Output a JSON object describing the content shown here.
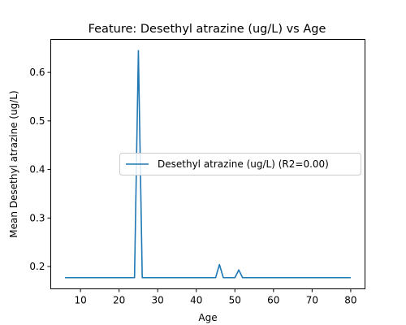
{
  "chart_data": {
    "type": "line",
    "title": "Feature: Desethyl atrazine (ug/L) vs Age",
    "xlabel": "Age",
    "ylabel": "Mean Desethyl atrazine (ug/L)",
    "xlim": [
      2.3,
      83.7
    ],
    "ylim": [
      0.154,
      0.668
    ],
    "xticks": [
      10,
      20,
      30,
      40,
      50,
      60,
      70,
      80
    ],
    "yticks": [
      0.2,
      0.3,
      0.4,
      0.5,
      0.6
    ],
    "ytick_labels": [
      "0.2",
      "0.3",
      "0.4",
      "0.5",
      "0.6"
    ],
    "grid": false,
    "legend_position": "center-right",
    "color": "#1f77b4",
    "series": [
      {
        "name": "Desethyl atrazine (ug/L) (R2=0.00)",
        "x": [
          6,
          24,
          25,
          26,
          45,
          46,
          47,
          50,
          51,
          52,
          80
        ],
        "y": [
          0.177,
          0.177,
          0.645,
          0.177,
          0.177,
          0.204,
          0.177,
          0.177,
          0.193,
          0.177,
          0.177
        ]
      }
    ]
  }
}
